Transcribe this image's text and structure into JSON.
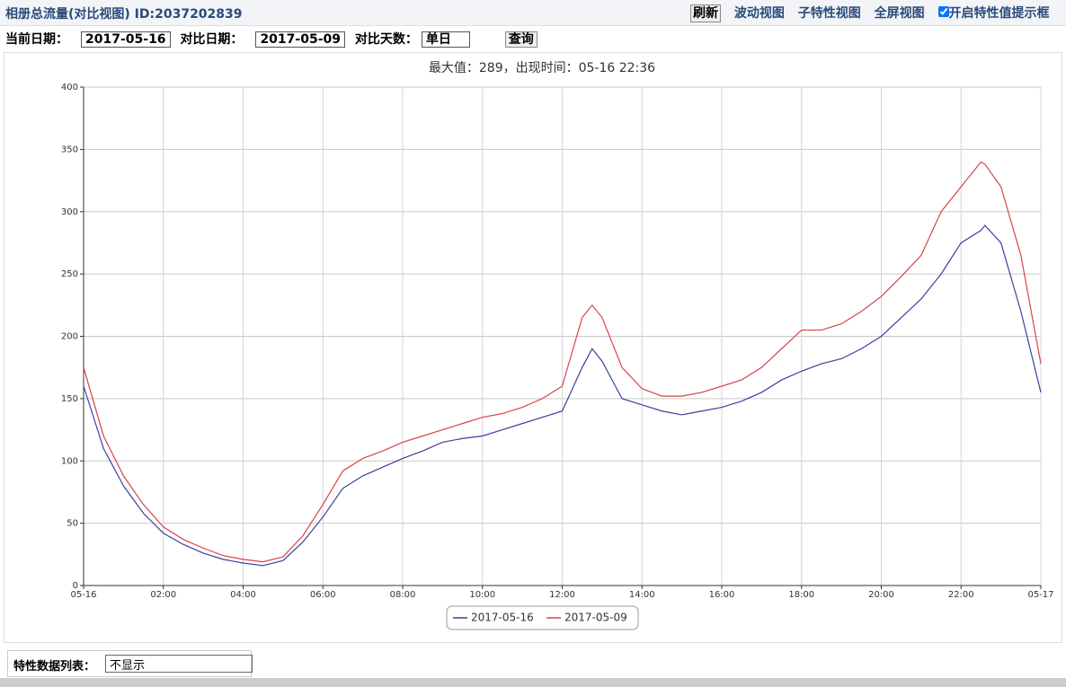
{
  "header": {
    "title": "相册总流量(对比视图) ID:2037202839",
    "buttons": [
      "刷新",
      "波动视图",
      "子特性视图",
      "全屏视图"
    ],
    "checkbox_label": "开启特性值提示框"
  },
  "controls": {
    "current_date_label": "当前日期：",
    "current_date": "2017-05-16",
    "compare_date_label": "对比日期：",
    "compare_date": "2017-05-09",
    "days_label": "对比天数：",
    "days_value": "单日",
    "query": "查询"
  },
  "chart_data": {
    "type": "line",
    "subtitle": "最大值：289，出现时间：05-16 22:36",
    "x": [
      0,
      0.5,
      1,
      1.5,
      2,
      2.5,
      3,
      3.5,
      4,
      4.5,
      5,
      5.5,
      6,
      6.5,
      7,
      7.5,
      8,
      8.5,
      9,
      9.5,
      10,
      10.5,
      11,
      11.5,
      12,
      12.5,
      12.75,
      13,
      13.5,
      14,
      14.5,
      15,
      15.5,
      16,
      16.5,
      17,
      17.5,
      18,
      18.5,
      19,
      19.5,
      20,
      20.5,
      21,
      21.5,
      22,
      22.5,
      22.6,
      23,
      23.5,
      24
    ],
    "series": [
      {
        "name": "2017-05-16",
        "color": "#3b3f9e",
        "values": [
          160,
          110,
          80,
          58,
          42,
          33,
          26,
          21,
          18,
          16,
          20,
          35,
          55,
          78,
          88,
          95,
          102,
          108,
          115,
          118,
          120,
          125,
          130,
          135,
          140,
          175,
          190,
          180,
          150,
          145,
          140,
          137,
          140,
          143,
          148,
          155,
          165,
          172,
          178,
          182,
          190,
          200,
          215,
          230,
          250,
          275,
          285,
          289,
          275,
          220,
          155
        ]
      },
      {
        "name": "2017-05-09",
        "color": "#d9424a",
        "values": [
          175,
          120,
          88,
          65,
          47,
          37,
          30,
          24,
          21,
          19,
          23,
          40,
          65,
          92,
          102,
          108,
          115,
          120,
          125,
          130,
          135,
          138,
          143,
          150,
          160,
          215,
          225,
          215,
          175,
          158,
          152,
          152,
          155,
          160,
          165,
          175,
          190,
          205,
          205,
          210,
          220,
          232,
          248,
          265,
          300,
          320,
          340,
          338,
          320,
          265,
          178
        ]
      }
    ],
    "xlim": [
      0,
      24
    ],
    "xticks": [
      {
        "value": 0,
        "label": "05-16"
      },
      {
        "value": 2,
        "label": "02:00"
      },
      {
        "value": 4,
        "label": "04:00"
      },
      {
        "value": 6,
        "label": "06:00"
      },
      {
        "value": 8,
        "label": "08:00"
      },
      {
        "value": 10,
        "label": "10:00"
      },
      {
        "value": 12,
        "label": "12:00"
      },
      {
        "value": 14,
        "label": "14:00"
      },
      {
        "value": 16,
        "label": "16:00"
      },
      {
        "value": 18,
        "label": "18:00"
      },
      {
        "value": 20,
        "label": "20:00"
      },
      {
        "value": 22,
        "label": "22:00"
      },
      {
        "value": 24,
        "label": "05-17"
      }
    ],
    "ylim": [
      0,
      400
    ],
    "yticks": [
      0,
      50,
      100,
      150,
      200,
      250,
      300,
      350,
      400
    ],
    "grid": true
  },
  "footer": {
    "label": "特性数据列表：",
    "select": "不显示"
  }
}
